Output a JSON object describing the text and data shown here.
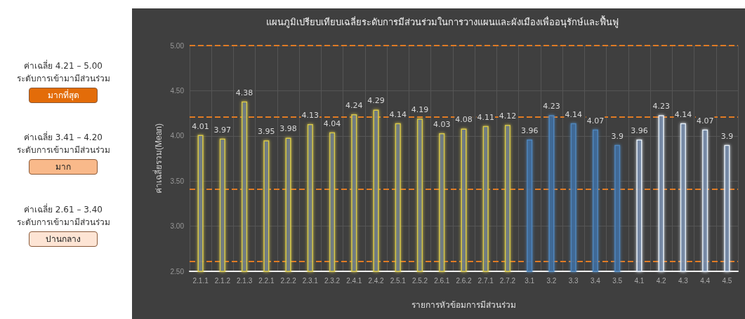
{
  "chart_data": {
    "type": "bar",
    "title": "แผนภูมิเปรียบเทียบเฉลี่ยระดับการมีส่วนร่วมในการวางแผนและผังเมืองเพื่ออนุรักษ์และฟื้นฟู",
    "xlabel": "รายการหัวข้อมการมีส่วนร่วม",
    "ylabel": "ค่าเฉลี่ยรวม(Mean)",
    "categories": [
      "2.1.1",
      "2.1.2",
      "2.1.3",
      "2.2.1",
      "2.2.2",
      "2.3.1",
      "2.3.2",
      "2.4.1",
      "2.4.2",
      "2.5.1",
      "2.5.2",
      "2.6.1",
      "2.6.2",
      "2.7.1",
      "2.7.2",
      "3.1",
      "3.2",
      "3.3",
      "3.4",
      "3.5",
      "4.1",
      "4.2",
      "4.3",
      "4.4",
      "4.5"
    ],
    "series": [
      {
        "color": "#d9c84a",
        "values": [
          4.01,
          3.97,
          4.38,
          3.95,
          3.98,
          4.13,
          4.04,
          4.24,
          4.29,
          4.14,
          4.19,
          4.03,
          4.08,
          4.11,
          4.12,
          null,
          null,
          null,
          null,
          null,
          null,
          null,
          null,
          null,
          null
        ]
      },
      {
        "color": "#4f86bd",
        "values": [
          null,
          null,
          null,
          null,
          null,
          null,
          null,
          null,
          null,
          null,
          null,
          null,
          null,
          null,
          null,
          3.96,
          4.23,
          4.14,
          4.07,
          3.9,
          null,
          null,
          null,
          null,
          null
        ]
      },
      {
        "color": "#e6eef7",
        "values": [
          null,
          null,
          null,
          null,
          null,
          null,
          null,
          null,
          null,
          null,
          null,
          null,
          null,
          null,
          null,
          null,
          null,
          null,
          null,
          null,
          3.96,
          4.23,
          4.14,
          4.07,
          3.9
        ]
      }
    ],
    "ylim": [
      2.5,
      5.0
    ],
    "yticks": [
      {
        "value": 2.5,
        "label": "2.50"
      },
      {
        "value": 3.0,
        "label": "3.00"
      },
      {
        "value": 3.5,
        "label": "3.50"
      },
      {
        "value": 4.0,
        "label": "4.00"
      },
      {
        "value": 4.5,
        "label": "4.50"
      },
      {
        "value": 5.0,
        "label": "5.00"
      }
    ],
    "grid": true,
    "data_labels": true,
    "ref_lines": [
      {
        "axis": "y",
        "value": 5.0,
        "color": "#e07b24",
        "line_style": "dashed"
      },
      {
        "axis": "y",
        "value": 4.21,
        "color": "#e07b24",
        "line_style": "dashed"
      },
      {
        "axis": "y",
        "value": 3.41,
        "color": "#e07b24",
        "line_style": "dashed"
      },
      {
        "axis": "y",
        "value": 2.61,
        "color": "#e07b24",
        "line_style": "dashed"
      }
    ],
    "annotations": [
      "ค่าเฉลี่ย 4.21 – 5.00",
      "ระดับการเข้ามามีส่วนร่วม",
      "มากที่สุด",
      "ค่าเฉลี่ย 3.41 – 4.20",
      "ระดับการเข้ามามีส่วนร่วม",
      "มาก",
      "ค่าเฉลี่ย 2.61 – 3.40",
      "ระดับการเข้ามามีส่วนร่วม",
      "ปานกลาง"
    ]
  }
}
